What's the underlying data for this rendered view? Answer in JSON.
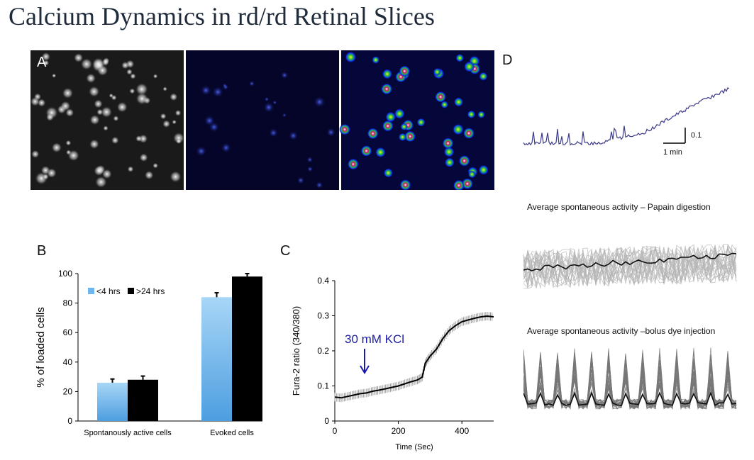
{
  "title": "Calcium Dynamics in rd/rd Retinal Slices",
  "panels": {
    "a": {
      "letter": "A"
    },
    "b": {
      "letter": "B"
    },
    "c": {
      "letter": "C"
    },
    "d": {
      "letter": "D",
      "scale_y_label": "0.1",
      "scale_x_label": "1 min",
      "subtitle_papain": "Average spontaneous activity – Papain digestion",
      "subtitle_bolus": "Average spontaneous activity –bolus dye injection"
    }
  },
  "chart_data": [
    {
      "panel": "B",
      "type": "bar",
      "categories": [
        "Spontanously active cells",
        "Evoked cells"
      ],
      "series": [
        {
          "name": "<4 hrs",
          "values": [
            26,
            84
          ],
          "errors": [
            2.5,
            3
          ],
          "color": "#6fb6ee"
        },
        {
          "name": ">24 hrs",
          "values": [
            28,
            98
          ],
          "errors": [
            2.5,
            2
          ],
          "color": "#000000"
        }
      ],
      "ylabel": "% of loaded cells",
      "ylim": [
        0,
        100
      ],
      "yticks": [
        "0",
        "20",
        "40",
        "60",
        "80",
        "100"
      ],
      "legend_position": "top-left"
    },
    {
      "panel": "C",
      "type": "line",
      "xlabel": "Time (Sec)",
      "ylabel": "Fura-2 ratio (340/380)",
      "xlim": [
        0,
        500
      ],
      "ylim": [
        0,
        0.4
      ],
      "xticks": [
        "0",
        "200",
        "400"
      ],
      "yticks": [
        "0",
        "0.1",
        "0.2",
        "0.3",
        "0.4"
      ],
      "annotation": "30 mM KCl",
      "annotation_color": "#1a1aa8",
      "series": [
        {
          "x": [
            0,
            20,
            40,
            60,
            80,
            100,
            120,
            140,
            160,
            180,
            200,
            220,
            240,
            260,
            275,
            285,
            300,
            320,
            340,
            360,
            380,
            400,
            420,
            440,
            460,
            480,
            500
          ],
          "y": [
            0.068,
            0.066,
            0.07,
            0.074,
            0.078,
            0.08,
            0.085,
            0.088,
            0.092,
            0.096,
            0.1,
            0.106,
            0.112,
            0.117,
            0.125,
            0.165,
            0.185,
            0.205,
            0.235,
            0.258,
            0.272,
            0.283,
            0.288,
            0.293,
            0.297,
            0.299,
            0.297
          ],
          "error": 0.012
        }
      ]
    }
  ]
}
